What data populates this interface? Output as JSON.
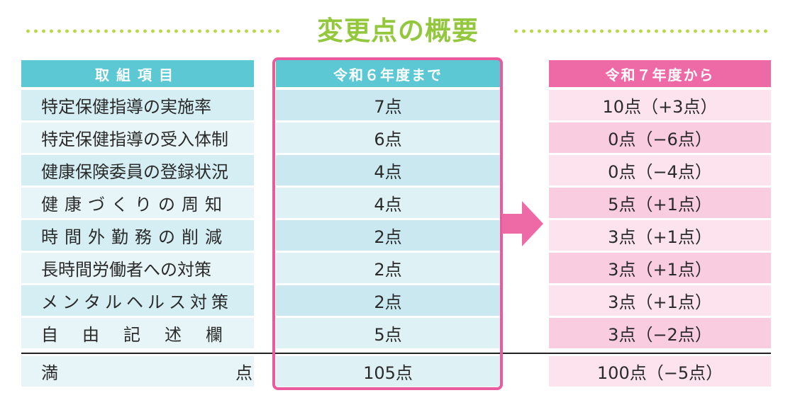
{
  "title": "変更点の概要",
  "colors": {
    "title_green": "#93c83e",
    "header_cyan": "#5cc8d4",
    "header_pink": "#ee6aa7",
    "frame_pink": "#ea5a9f",
    "arrow_pink": "#ee6aa7"
  },
  "headers": {
    "item": "取組項目",
    "r6": "令和６年度まで",
    "r7": "令和７年度から"
  },
  "rows": [
    {
      "item": "特定保健指導の実施率",
      "r6": "7点",
      "r7": "10点（+3点）"
    },
    {
      "item": "特定保健指導の受入体制",
      "r6": "6点",
      "r7": "0点（−6点）"
    },
    {
      "item": "健康保険委員の登録状況",
      "r6": "4点",
      "r7": "0点（−4点）"
    },
    {
      "item": "健康づくりの周知",
      "r6": "4点",
      "r7": "5点（+1点）"
    },
    {
      "item": "時間外勤務の削減",
      "r6": "2点",
      "r7": "3点（+1点）"
    },
    {
      "item": "長時間労働者への対策",
      "r6": "2点",
      "r7": "3点（+1点）"
    },
    {
      "item": "メンタルヘルス対策",
      "r6": "2点",
      "r7": "3点（+1点）"
    },
    {
      "item": "自由記述欄",
      "r6": "5点",
      "r7": "3点（−2点）"
    }
  ],
  "total": {
    "label_left": "満",
    "label_right": "点",
    "r6": "105点",
    "r7": "100点（−5点）"
  },
  "icons": {
    "arrow": "arrow-right-icon"
  }
}
